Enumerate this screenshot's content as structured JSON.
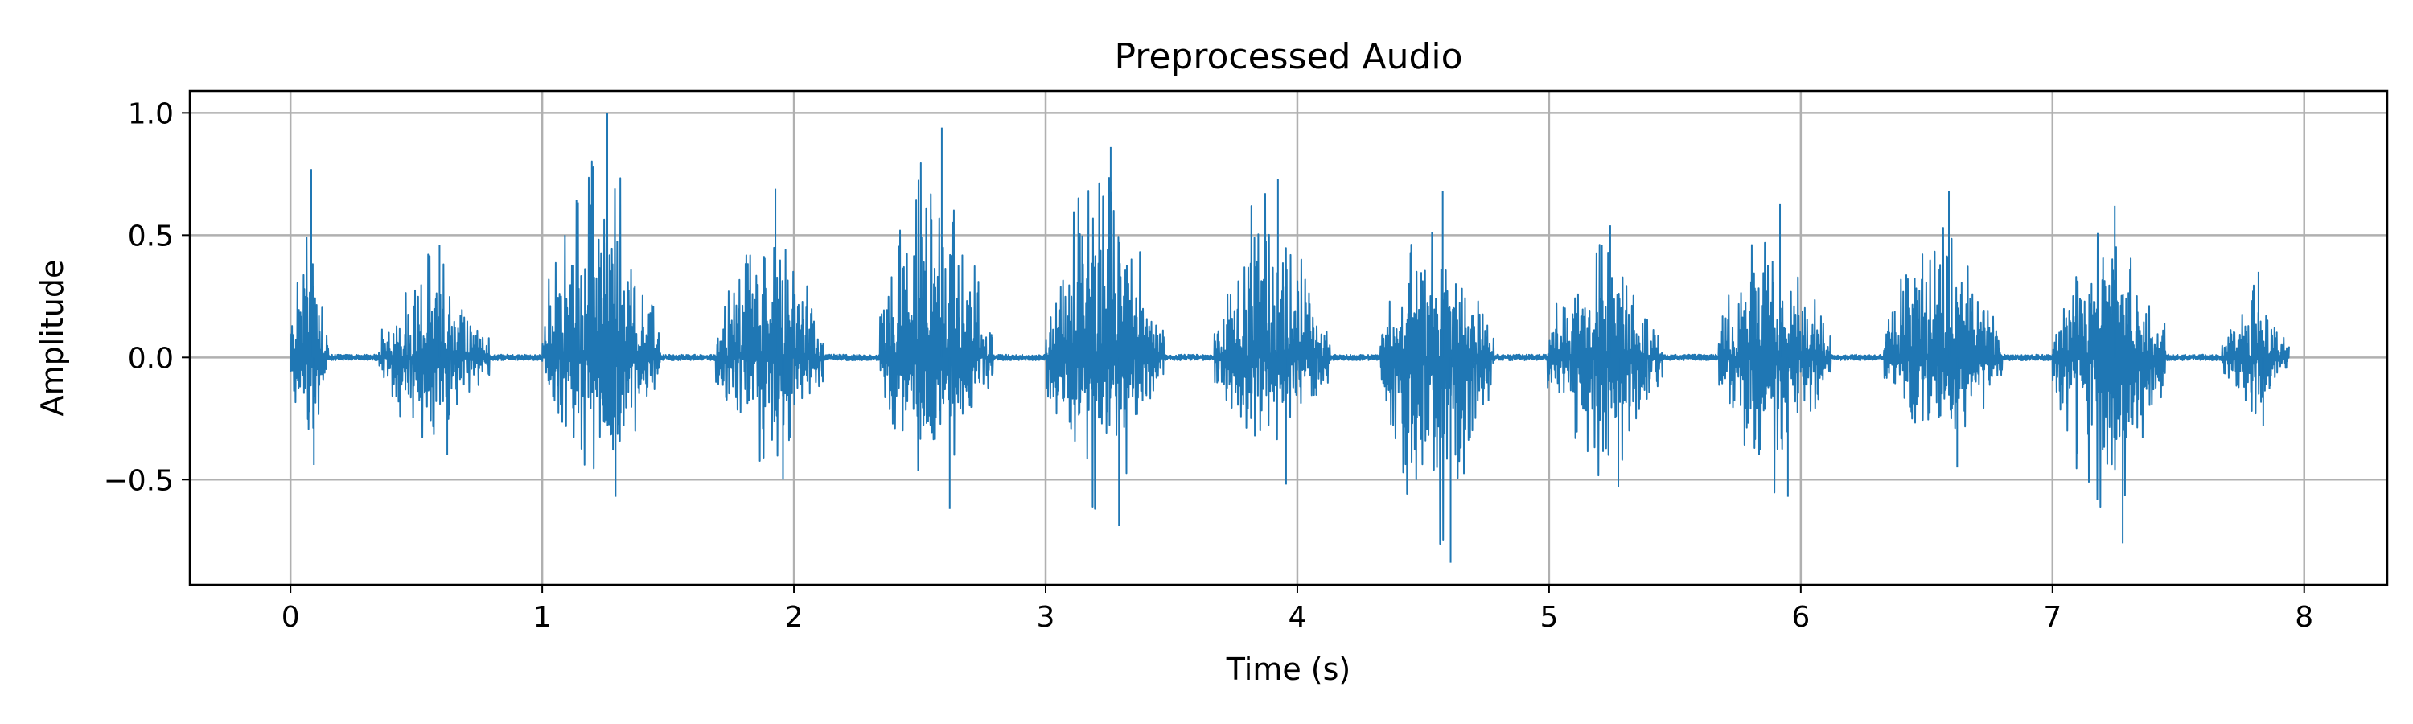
{
  "chart_data": {
    "type": "line",
    "title": "Preprocessed Audio",
    "xlabel": "Time (s)",
    "ylabel": "Amplitude",
    "xlim": [
      -0.4,
      8.33
    ],
    "ylim": [
      -0.93,
      1.09
    ],
    "xticks": [
      0,
      1,
      2,
      3,
      4,
      5,
      6,
      7,
      8
    ],
    "xtick_labels": [
      "0",
      "1",
      "2",
      "3",
      "4",
      "5",
      "6",
      "7",
      "8"
    ],
    "yticks": [
      -0.5,
      0.0,
      0.5,
      1.0
    ],
    "ytick_labels": [
      "−0.5",
      "0.0",
      "0.5",
      "1.0"
    ],
    "grid": true,
    "line_color": "#1f77b4",
    "duration": 7.94,
    "noise_floor": 0.012,
    "bursts": [
      {
        "start": 0.0,
        "end": 0.15,
        "peak_max": 0.77,
        "peak_min": -0.44
      },
      {
        "start": 0.35,
        "end": 0.79,
        "peak_max": 0.46,
        "peak_min": -0.4
      },
      {
        "start": 1.0,
        "end": 1.47,
        "peak_max": 1.0,
        "peak_min": -0.57
      },
      {
        "start": 1.69,
        "end": 2.12,
        "peak_max": 0.69,
        "peak_min": -0.5
      },
      {
        "start": 2.34,
        "end": 2.79,
        "peak_max": 0.94,
        "peak_min": -0.62
      },
      {
        "start": 3.0,
        "end": 3.47,
        "peak_max": 0.86,
        "peak_min": -0.69
      },
      {
        "start": 3.67,
        "end": 4.13,
        "peak_max": 0.73,
        "peak_min": -0.52
      },
      {
        "start": 4.33,
        "end": 4.78,
        "peak_max": 0.68,
        "peak_min": -0.84
      },
      {
        "start": 4.99,
        "end": 5.45,
        "peak_max": 0.54,
        "peak_min": -0.53
      },
      {
        "start": 5.67,
        "end": 6.12,
        "peak_max": 0.63,
        "peak_min": -0.57
      },
      {
        "start": 6.33,
        "end": 6.8,
        "peak_max": 0.68,
        "peak_min": -0.45
      },
      {
        "start": 7.0,
        "end": 7.45,
        "peak_max": 0.62,
        "peak_min": -0.76
      },
      {
        "start": 7.67,
        "end": 7.94,
        "peak_max": 0.35,
        "peak_min": -0.28
      }
    ]
  }
}
